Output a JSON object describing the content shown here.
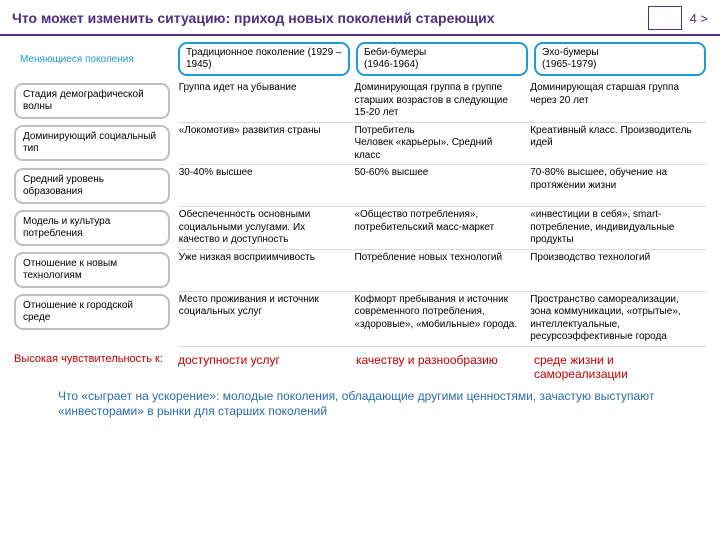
{
  "colors": {
    "header_border": "#5a2e7a",
    "title_color": "#4f2d7f",
    "page_num_color": "#5a2e7a",
    "right_box_border": "#5a2e7a",
    "blue_border": "#2199d5",
    "gray_border": "#bfbfbf",
    "blue_text": "#2199d5",
    "sens_label_color": "#c00000",
    "sens_cell_color": "#c00000",
    "footer_color": "#2b6bb3"
  },
  "header": {
    "title": "Что может изменить ситуацию: приход новых поколений стареющих",
    "page": "4 >"
  },
  "top_label": "Меняющиеся поколения",
  "generations": [
    "Традиционное поколение  (1929 – 1945)",
    "Беби-бумеры\n(1946-1964)",
    "Эхо-бумеры\n(1965-1979)"
  ],
  "rows": [
    {
      "label": "Стадия демографической волны",
      "cells": [
        "Группа идет на убывание",
        "Доминирующая группа в группе старших возрастов в следующие 15-20 лет",
        "Доминирующая старшая группа через 20 лет"
      ]
    },
    {
      "label": "Доминирующий социальный тип",
      "cells": [
        "«Локомотив» развития страны",
        "Потребитель\nЧеловек «карьеры». Средний класс",
        "Креативный класс. Производитель идей"
      ]
    },
    {
      "label": "Средний  уровень образования",
      "cells": [
        "30-40% высшее",
        "50-60% высшее",
        "70-80% высшее, обучение на протяжении жизни"
      ]
    },
    {
      "label": "Модель и культура потребления",
      "cells": [
        "Обеспеченность основными социальными услугами. Их качество и доступность",
        "«Общество  потребления», потребительский масс-маркет",
        "«инвестиции в себя», smart-потребление, индивидуальные продукты"
      ]
    },
    {
      "label": "Отношение к новым технологиям",
      "cells": [
        "Уже низкая восприимчивость",
        "Потребление  новых технологий",
        "Производство технологий"
      ]
    },
    {
      "label": "Отношение к городской среде",
      "cells": [
        "Место проживания и источник социальных услуг",
        "Кофморт пребывания и источник современного потребления, «здоровые», «мобильные»  города.",
        "Пространство самореализации, зона коммуникации, «отрытые», интеллектуальные, ресурсоэффективные города"
      ]
    }
  ],
  "sensitivity": {
    "label": "Высокая чувствительность к:",
    "cells": [
      "доступности услуг",
      "качеству и разнообразию",
      "среде жизни и самореализации"
    ]
  },
  "footer": "Что «сыграет на ускорение»: молодые поколения, обладающие другими ценностями, зачастую выступают «инвесторами» в рынки для старших поколений"
}
